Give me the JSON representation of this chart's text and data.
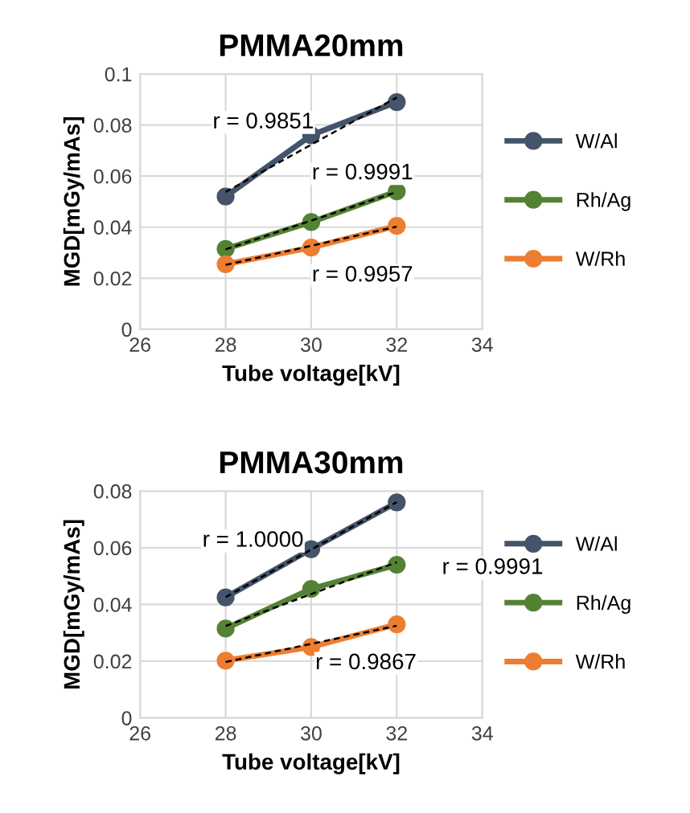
{
  "chart_data": [
    {
      "type": "line",
      "title": "PMMA20mm",
      "xlabel": "Tube voltage[kV]",
      "ylabel": "MGD[mGy/mAs]",
      "xlim": [
        26,
        34
      ],
      "xticks": [
        26,
        28,
        30,
        32,
        34
      ],
      "ylim": [
        0,
        0.1
      ],
      "yticks": [
        0,
        0.02,
        0.04,
        0.06,
        0.08,
        0.1
      ],
      "grid": true,
      "legend": "right",
      "marker": "circle",
      "series": [
        {
          "name": "W/Al",
          "color": "#44546a",
          "x": [
            28,
            30,
            32
          ],
          "values": [
            0.052,
            0.076,
            0.089
          ]
        },
        {
          "name": "Rh/Ag",
          "color": "#548235",
          "x": [
            28,
            30,
            32
          ],
          "values": [
            0.0315,
            0.042,
            0.054
          ]
        },
        {
          "name": "W/Rh",
          "color": "#ed7d31",
          "x": [
            28,
            30,
            32
          ],
          "values": [
            0.0255,
            0.032,
            0.0405
          ]
        },
        {
          "type": "line",
          "color": "#000000",
          "line_style": "dashed",
          "marker": "none",
          "x": [
            28,
            32
          ],
          "values": [
            0.0538,
            0.0908
          ]
        },
        {
          "type": "line",
          "color": "#000000",
          "line_style": "dashed",
          "marker": "none",
          "x": [
            28,
            32
          ],
          "values": [
            0.0313,
            0.0538
          ]
        },
        {
          "type": "line",
          "color": "#000000",
          "line_style": "dashed",
          "marker": "none",
          "x": [
            28,
            32
          ],
          "values": [
            0.0252,
            0.0402
          ]
        }
      ],
      "annotations": [
        "r = 0.9851",
        "r = 0.9991",
        "r = 0.9957"
      ]
    },
    {
      "type": "line",
      "title": "PMMA30mm",
      "xlabel": "Tube voltage[kV]",
      "ylabel": "MGD[mGy/mAs]",
      "xlim": [
        26,
        34
      ],
      "xticks": [
        26,
        28,
        30,
        32,
        34
      ],
      "ylim": [
        0,
        0.08
      ],
      "yticks": [
        0,
        0.02,
        0.04,
        0.06,
        0.08
      ],
      "grid": true,
      "legend": "right",
      "marker": "circle",
      "series": [
        {
          "name": "W/Al",
          "color": "#44546a",
          "x": [
            28,
            30,
            32
          ],
          "values": [
            0.0425,
            0.0595,
            0.076
          ]
        },
        {
          "name": "Rh/Ag",
          "color": "#548235",
          "x": [
            28,
            30,
            32
          ],
          "values": [
            0.0315,
            0.0455,
            0.054
          ]
        },
        {
          "name": "W/Rh",
          "color": "#ed7d31",
          "x": [
            28,
            30,
            32
          ],
          "values": [
            0.0202,
            0.025,
            0.033
          ]
        },
        {
          "type": "line",
          "color": "#000000",
          "line_style": "dashed",
          "marker": "none",
          "x": [
            28,
            32
          ],
          "values": [
            0.0426,
            0.0761
          ]
        },
        {
          "type": "line",
          "color": "#000000",
          "line_style": "dashed",
          "marker": "none",
          "x": [
            28,
            32
          ],
          "values": [
            0.0324,
            0.0549
          ]
        },
        {
          "type": "line",
          "color": "#000000",
          "line_style": "dashed",
          "marker": "none",
          "x": [
            28,
            32
          ],
          "values": [
            0.0197,
            0.0325
          ]
        }
      ],
      "annotations": [
        "r = 1.0000",
        "r = 0.9991",
        "r = 0.9867"
      ]
    }
  ]
}
